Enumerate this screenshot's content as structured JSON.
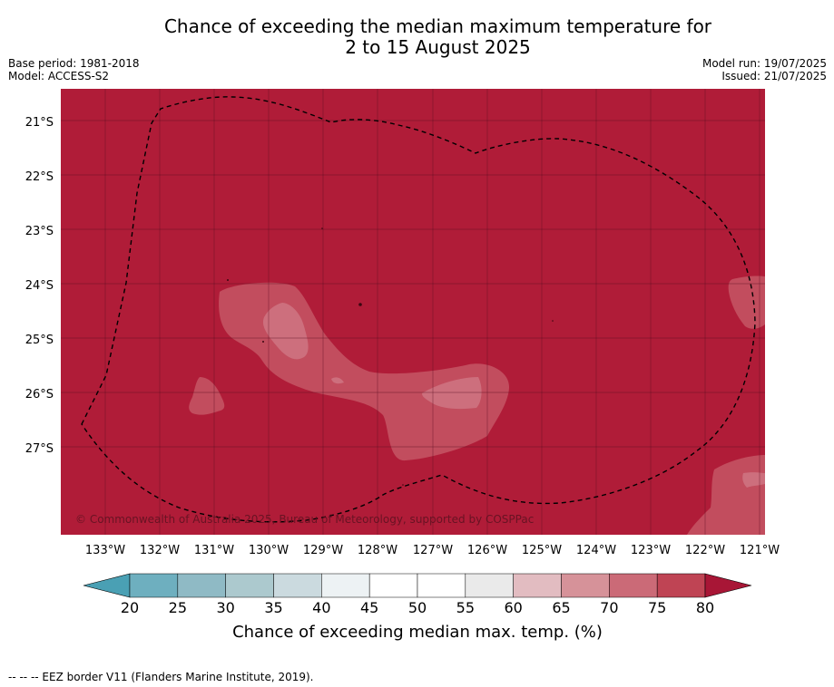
{
  "title": {
    "line1": "Chance of exceeding the median maximum temperature for",
    "line2": "2 to 15 August 2025"
  },
  "meta": {
    "base_period": "Base period: 1981-2018",
    "model": "Model: ACCESS-S2",
    "model_run": "Model run: 19/07/2025",
    "issued": "Issued: 21/07/2025"
  },
  "map": {
    "lat_labels": [
      "21°S",
      "22°S",
      "23°S",
      "24°S",
      "25°S",
      "26°S",
      "27°S"
    ],
    "lon_labels": [
      "133°W",
      "132°W",
      "131°W",
      "130°W",
      "129°W",
      "128°W",
      "127°W",
      "126°W",
      "125°W",
      "124°W",
      "123°W",
      "122°W",
      "121°W"
    ],
    "copyright": "© Commonwealth of Australia 2025, Bureau of Meteorology, supported by COSPPac",
    "base_color": "#b01c38",
    "patch_color_70": "#c24d5e",
    "patch_color_65": "#cd6f7d",
    "patch_color_60": "#d88d97"
  },
  "colorbar": {
    "ticks": [
      "20",
      "25",
      "30",
      "35",
      "40",
      "45",
      "50",
      "55",
      "60",
      "65",
      "70",
      "75",
      "80"
    ],
    "colors": [
      "#6eafbf",
      "#8fbac5",
      "#acc9ce",
      "#cbdadf",
      "#edf2f4",
      "#ffffff",
      "#ffffff",
      "#eaeaea",
      "#e2bcc1",
      "#d69299",
      "#cb6a77",
      "#bf4454"
    ],
    "under_color": "#4aa0b4",
    "over_color": "#a81636",
    "label": "Chance of exceeding median max. temp. (%)"
  },
  "footer": {
    "eez_note": "--  --  -- EEZ border V11 (Flanders Marine Institute, 2019)."
  }
}
